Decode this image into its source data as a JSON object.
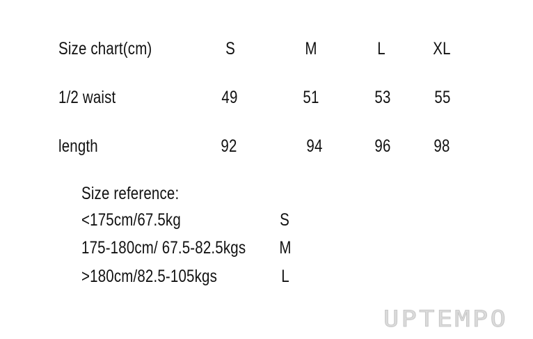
{
  "table": {
    "header": [
      "Size chart(cm)",
      "S",
      "M",
      "L",
      "XL"
    ],
    "rows": [
      {
        "label": "1/2 waist",
        "values": [
          "49",
          "51",
          "53",
          "55"
        ]
      },
      {
        "label": "length",
        "values": [
          "92",
          "94",
          "96",
          "98"
        ]
      }
    ]
  },
  "reference": {
    "title": "Size reference:",
    "items": [
      {
        "range": "<175cm/67.5kg",
        "size": "S"
      },
      {
        "range": "175-180cm/ 67.5-82.5kgs",
        "size": "M"
      },
      {
        "range": ">180cm/82.5-105kgs",
        "size": "L"
      }
    ]
  },
  "watermark": "UPTEMPO"
}
